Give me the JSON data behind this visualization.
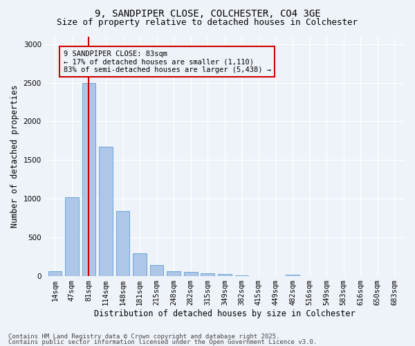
{
  "title_line1": "9, SANDPIPER CLOSE, COLCHESTER, CO4 3GE",
  "title_line2": "Size of property relative to detached houses in Colchester",
  "xlabel": "Distribution of detached houses by size in Colchester",
  "ylabel": "Number of detached properties",
  "categories": [
    "14sqm",
    "47sqm",
    "81sqm",
    "114sqm",
    "148sqm",
    "181sqm",
    "215sqm",
    "248sqm",
    "282sqm",
    "315sqm",
    "349sqm",
    "382sqm",
    "415sqm",
    "449sqm",
    "482sqm",
    "516sqm",
    "549sqm",
    "583sqm",
    "616sqm",
    "650sqm",
    "683sqm"
  ],
  "values": [
    60,
    1020,
    2500,
    1670,
    840,
    300,
    140,
    60,
    55,
    40,
    30,
    10,
    0,
    0,
    20,
    0,
    0,
    0,
    0,
    0,
    0
  ],
  "bar_color": "#aec6e8",
  "bar_edge_color": "#5a9fd4",
  "vline_index": 2,
  "vline_color": "#cc0000",
  "annotation_text": "9 SANDPIPER CLOSE: 83sqm\n← 17% of detached houses are smaller (1,110)\n83% of semi-detached houses are larger (5,438) →",
  "annotation_box_color": "#cc0000",
  "ylim": [
    0,
    3100
  ],
  "yticks": [
    0,
    500,
    1000,
    1500,
    2000,
    2500,
    3000
  ],
  "background_color": "#eef2f9",
  "footer_line1": "Contains HM Land Registry data © Crown copyright and database right 2025.",
  "footer_line2": "Contains public sector information licensed under the Open Government Licence v3.0.",
  "title_fontsize": 10,
  "subtitle_fontsize": 9,
  "axis_label_fontsize": 8.5,
  "tick_fontsize": 7.5,
  "annotation_fontsize": 7.5,
  "footer_fontsize": 6.5
}
